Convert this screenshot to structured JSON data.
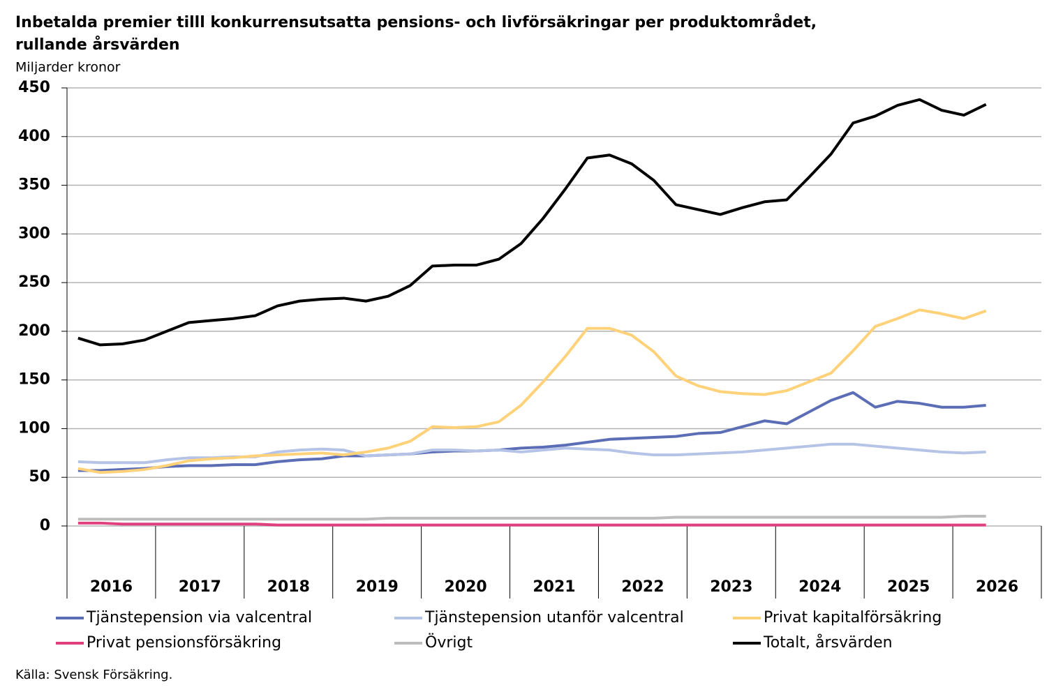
{
  "chart_data": {
    "type": "line",
    "title": "Inbetalda premier tilll konkurrensutsatta pensions- och livförsäkringar per produktområdet, rullande årsvärden",
    "subtitle": "Miljarder kronor",
    "source": "Källa: Svensk Försäkring.",
    "categories": [
      null,
      null,
      null,
      null,
      null,
      null,
      null,
      null,
      null,
      null,
      null,
      null,
      null,
      null,
      null,
      null,
      null,
      null,
      null,
      null,
      null,
      null,
      null,
      null,
      null,
      null,
      null,
      null,
      null,
      null,
      null,
      null,
      null,
      null,
      null,
      null,
      null,
      null,
      null,
      null,
      null,
      null,
      null,
      null
    ],
    "x_groups": [
      "2016",
      "2017",
      "2018",
      "2019",
      "2020",
      "2021",
      "2022",
      "2023",
      "2024",
      "2025",
      "2026"
    ],
    "ylim": [
      0,
      450
    ],
    "yticks": [
      0,
      50,
      100,
      150,
      200,
      250,
      300,
      350,
      400,
      450
    ],
    "grid": true,
    "series": [
      {
        "name": "Tjänstepension via valcentral",
        "color": "#5b6db5",
        "values": [
          57,
          57,
          58,
          59,
          61,
          62,
          62,
          63,
          63,
          66,
          68,
          69,
          72,
          72,
          73,
          74,
          76,
          77,
          77,
          78,
          80,
          81,
          83,
          86,
          89,
          90,
          91,
          92,
          95,
          96,
          102,
          108,
          105,
          117,
          129,
          137,
          122,
          128,
          126,
          122,
          122,
          124,
          null,
          null
        ]
      },
      {
        "name": "Tjänstepension utanför valcentral",
        "color": "#b4c3e6",
        "values": [
          66,
          65,
          65,
          65,
          68,
          70,
          70,
          71,
          71,
          76,
          78,
          79,
          78,
          72,
          73,
          74,
          78,
          78,
          77,
          78,
          76,
          78,
          80,
          79,
          78,
          75,
          73,
          73,
          74,
          75,
          76,
          78,
          80,
          82,
          84,
          84,
          82,
          80,
          78,
          76,
          75,
          76,
          null,
          null
        ]
      },
      {
        "name": "Privat kapitalförsäkring",
        "color": "#ffd27a",
        "values": [
          59,
          55,
          56,
          58,
          62,
          67,
          69,
          70,
          72,
          73,
          74,
          75,
          73,
          76,
          80,
          87,
          102,
          101,
          102,
          107,
          124,
          148,
          174,
          203,
          203,
          196,
          179,
          154,
          144,
          138,
          136,
          135,
          139,
          148,
          157,
          180,
          205,
          213,
          222,
          218,
          213,
          221,
          null,
          null
        ]
      },
      {
        "name": "Privat pensionsförsäkring",
        "color": "#e0407e",
        "values": [
          3,
          3,
          2,
          2,
          2,
          2,
          2,
          2,
          2,
          1,
          1,
          1,
          1,
          1,
          1,
          1,
          1,
          1,
          1,
          1,
          1,
          1,
          1,
          1,
          1,
          1,
          1,
          1,
          1,
          1,
          1,
          1,
          1,
          1,
          1,
          1,
          1,
          1,
          1,
          1,
          1,
          1,
          null,
          null
        ]
      },
      {
        "name": "Övrigt",
        "color": "#bdbdbd",
        "values": [
          7,
          7,
          7,
          7,
          7,
          7,
          7,
          7,
          7,
          7,
          7,
          7,
          7,
          7,
          8,
          8,
          8,
          8,
          8,
          8,
          8,
          8,
          8,
          8,
          8,
          8,
          8,
          9,
          9,
          9,
          9,
          9,
          9,
          9,
          9,
          9,
          9,
          9,
          9,
          9,
          10,
          10,
          null,
          null
        ]
      },
      {
        "name": "Totalt, årsvärden",
        "color": "#000000",
        "values": [
          193,
          186,
          187,
          191,
          200,
          209,
          211,
          213,
          216,
          226,
          231,
          233,
          234,
          231,
          236,
          247,
          267,
          268,
          268,
          274,
          290,
          316,
          346,
          378,
          381,
          372,
          355,
          330,
          325,
          320,
          327,
          333,
          335,
          358,
          382,
          414,
          421,
          432,
          438,
          427,
          422,
          433,
          null,
          null
        ]
      }
    ]
  }
}
